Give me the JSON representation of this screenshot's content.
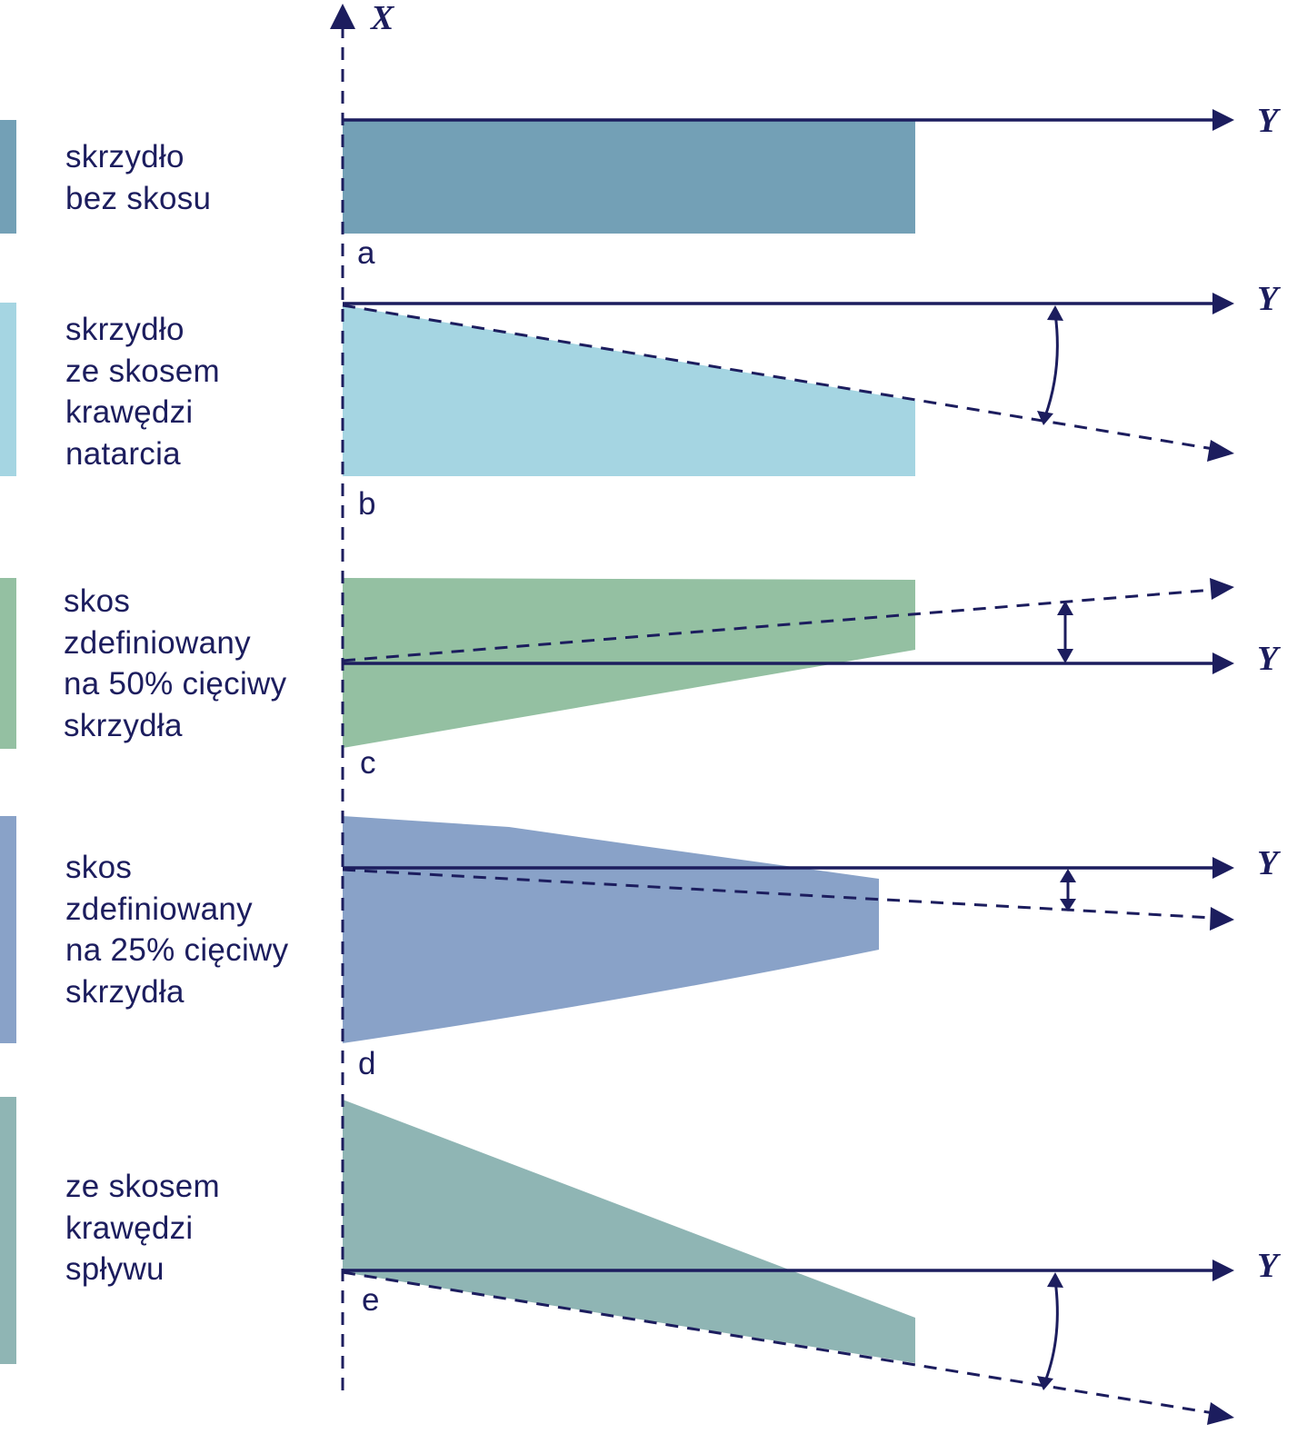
{
  "axes": {
    "vertical_label": "X",
    "horizontal_label": "Y"
  },
  "colors": {
    "ink": "#1c1d5e",
    "panel_a": "#73a0b6",
    "panel_b": "#a5d5e2",
    "panel_c": "#94c0a2",
    "panel_d": "#89a2c8",
    "panel_e": "#8fb5b4"
  },
  "panels": [
    {
      "letter": "a",
      "label": "skrzydło\nbez skosu",
      "swept_direction": "none"
    },
    {
      "letter": "b",
      "label": "skrzydło\nze skosem\nkrawędzi\nnatarcia",
      "swept_direction": "back"
    },
    {
      "letter": "c",
      "label": "skos\nzdefiniowany\nna 50% cięciwy\nskrzydła",
      "swept_direction": "forward"
    },
    {
      "letter": "d",
      "label": "skos\nzdefiniowany\nna 25% cięciwy\nskrzydła",
      "swept_direction": "back"
    },
    {
      "letter": "e",
      "label": "ze skosem\nkrawędzi\nspływu",
      "swept_direction": "back"
    }
  ]
}
